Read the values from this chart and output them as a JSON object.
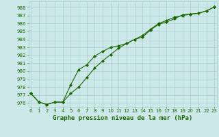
{
  "title": "Graphe pression niveau de la mer (hPa)",
  "background_color": "#cce8e8",
  "grid_color": "#aacccc",
  "line_color": "#1a6600",
  "marker_color": "#1a6600",
  "x_ticks": [
    0,
    1,
    2,
    3,
    4,
    5,
    6,
    7,
    8,
    9,
    10,
    11,
    12,
    13,
    14,
    15,
    16,
    17,
    18,
    19,
    20,
    21,
    22,
    23
  ],
  "y_ticks": [
    976,
    977,
    978,
    979,
    980,
    981,
    982,
    983,
    984,
    985,
    986,
    987,
    988
  ],
  "ylim": [
    975.5,
    988.8
  ],
  "xlim": [
    -0.3,
    23.3
  ],
  "line1": [
    977.2,
    976.1,
    975.8,
    976.1,
    976.1,
    978.3,
    980.2,
    980.8,
    981.9,
    982.5,
    983.0,
    983.2,
    983.5,
    984.0,
    984.3,
    985.2,
    985.9,
    986.2,
    986.6,
    987.1,
    987.2,
    987.3,
    987.6,
    988.1
  ],
  "line2": [
    977.2,
    976.1,
    975.8,
    976.1,
    976.1,
    977.2,
    978.0,
    979.2,
    980.4,
    981.3,
    982.1,
    982.9,
    983.5,
    984.0,
    984.5,
    985.3,
    986.0,
    986.4,
    986.8,
    987.0,
    987.2,
    987.3,
    987.6,
    988.1
  ],
  "title_fontsize": 6.5,
  "tick_fontsize": 5.0
}
